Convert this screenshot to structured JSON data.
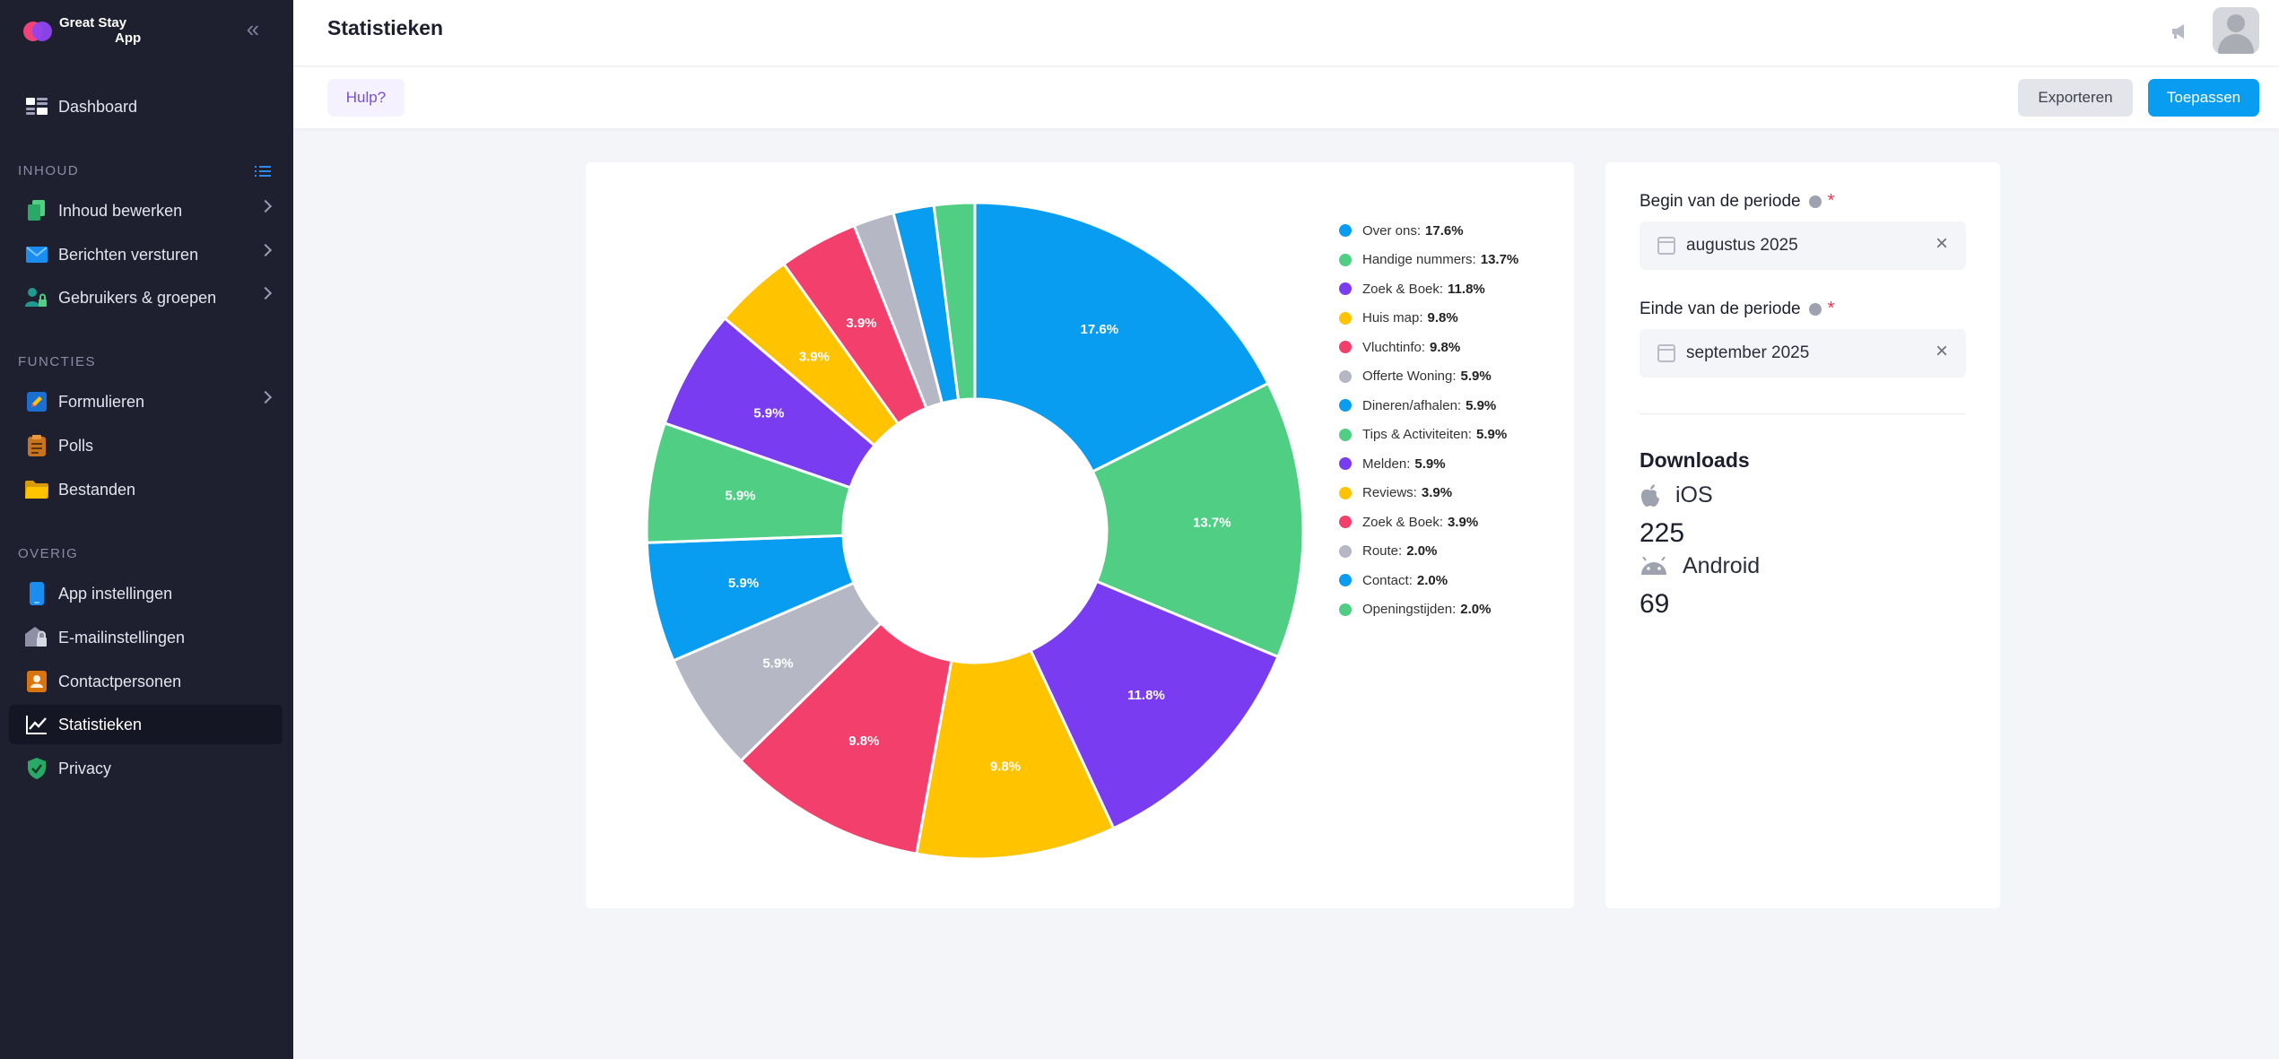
{
  "brand": {
    "line1": "Great Stay",
    "line2": "App"
  },
  "sidebar": {
    "dashboard": "Dashboard",
    "sections": {
      "content": "INHOUD",
      "functions": "FUNCTIES",
      "other": "OVERIG"
    },
    "items": {
      "edit_content": "Inhoud bewerken",
      "send_messages": "Berichten versturen",
      "users_groups": "Gebruikers & groepen",
      "forms": "Formulieren",
      "polls": "Polls",
      "files": "Bestanden",
      "app_settings": "App instellingen",
      "email_settings": "E-mailinstellingen",
      "contacts": "Contactpersonen",
      "statistics": "Statistieken",
      "privacy": "Privacy"
    }
  },
  "header": {
    "title": "Statistieken"
  },
  "toolbar": {
    "help": "Hulp?",
    "export": "Exporteren",
    "apply": "Toepassen"
  },
  "chart_data": {
    "type": "pie",
    "variant": "doughnut",
    "legend_position": "right",
    "slices": [
      {
        "label": "Over ons",
        "value": 17.6,
        "color": "#089df1"
      },
      {
        "label": "Handige nummers",
        "value": 13.7,
        "color": "#4fce84"
      },
      {
        "label": "Zoek & Boek",
        "value": 11.8,
        "color": "#7a3cf0"
      },
      {
        "label": "Huis map",
        "value": 9.8,
        "color": "#ffc300"
      },
      {
        "label": "Vluchtinfo",
        "value": 9.8,
        "color": "#f23f6c"
      },
      {
        "label": "Offerte Woning",
        "value": 5.9,
        "color": "#b6b7c4"
      },
      {
        "label": "Dineren/afhalen",
        "value": 5.9,
        "color": "#089df1"
      },
      {
        "label": "Tips & Activiteiten",
        "value": 5.9,
        "color": "#4fce84"
      },
      {
        "label": "Melden",
        "value": 5.9,
        "color": "#7a3cf0"
      },
      {
        "label": "Reviews",
        "value": 3.9,
        "color": "#ffc300"
      },
      {
        "label": "Zoek & Boek",
        "value": 3.9,
        "color": "#f23f6c"
      },
      {
        "label": "Route",
        "value": 2.0,
        "color": "#b6b7c4"
      },
      {
        "label": "Contact",
        "value": 2.0,
        "color": "#089df1"
      },
      {
        "label": "Openingstijden",
        "value": 2.0,
        "color": "#4fce84"
      }
    ],
    "unit": "%"
  },
  "period": {
    "start_label": "Begin van de periode",
    "start_value": "augustus 2025",
    "end_label": "Einde van de periode",
    "end_value": "september 2025",
    "required_mark": "*"
  },
  "downloads": {
    "title": "Downloads",
    "ios_label": "iOS",
    "ios_count": "225",
    "android_label": "Android",
    "android_count": "69"
  },
  "icons": {
    "collapse": "double-chevron-left-icon",
    "clear": "×"
  }
}
